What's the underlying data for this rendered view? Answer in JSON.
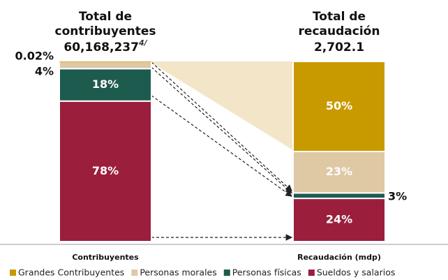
{
  "chart_data": {
    "type": "stacked_bar",
    "annotations": [
      {
        "lines": [
          "Total de",
          "contribuyentes"
        ],
        "value": "60,168,237",
        "note": "4/"
      },
      {
        "lines": [
          "Total de",
          "recaudación"
        ],
        "value": "2,702.1"
      }
    ],
    "categories": [
      "Contribuyentes",
      "Recaudación (mdp)"
    ],
    "ylim": [
      0,
      100
    ],
    "series": [
      {
        "name": "Grandes Contribuyentes",
        "color": "#c99a00",
        "values": [
          0.02,
          50
        ],
        "value_labels": [
          "0.02%",
          "50%"
        ]
      },
      {
        "name": "Personas morales",
        "color": "#dfc8a4",
        "values": [
          4,
          23
        ],
        "value_labels": [
          "4%",
          "23%"
        ]
      },
      {
        "name": "Personas físicas",
        "color": "#1e5b4f",
        "values": [
          18,
          3
        ],
        "value_labels": [
          "18%",
          "3%"
        ]
      },
      {
        "name": "Sueldos y salarios",
        "color": "#9b1e3d",
        "values": [
          78,
          24
        ],
        "value_labels": [
          "78%",
          "24%"
        ]
      }
    ]
  }
}
